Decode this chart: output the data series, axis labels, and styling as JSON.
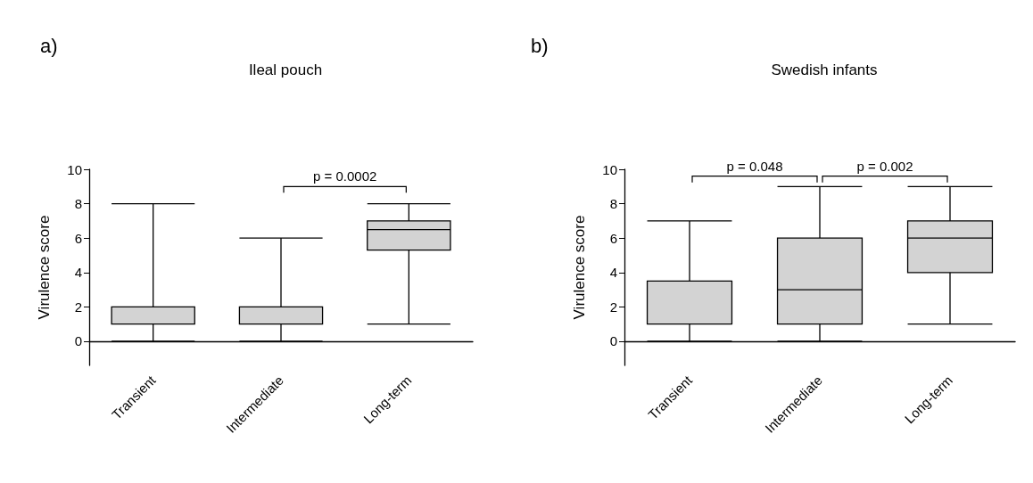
{
  "chart_data": [
    {
      "type": "box",
      "title": "Ileal pouch",
      "ylabel": "Virulence score",
      "categories": [
        "Transient",
        "Intermediate",
        "Long-term"
      ],
      "ylim": [
        -1.4,
        10
      ],
      "yticks": [
        0,
        2,
        4,
        6,
        8,
        10
      ],
      "series": [
        {
          "color": "#d3d3d3",
          "boxes": [
            {
              "low": 0,
              "q1": 1,
              "median": 1,
              "q3": 2,
              "high": 8
            },
            {
              "low": 0,
              "q1": 1,
              "median": 1,
              "q3": 2,
              "high": 6
            },
            {
              "low": 1,
              "q1": 5.3,
              "median": 6.5,
              "q3": 7,
              "high": 8
            }
          ]
        }
      ],
      "annotations": [
        "a)",
        "p = 0.0002"
      ]
    },
    {
      "type": "box",
      "title": "Swedish infants",
      "ylabel": "Virulence score",
      "categories": [
        "Transient",
        "Intermediate",
        "Long-term"
      ],
      "ylim": [
        -1.4,
        10
      ],
      "yticks": [
        0,
        2,
        4,
        6,
        8,
        10
      ],
      "series": [
        {
          "color": "#d3d3d3",
          "boxes": [
            {
              "low": 0,
              "q1": 1,
              "median": 1,
              "q3": 3.5,
              "high": 7
            },
            {
              "low": 0,
              "q1": 1,
              "median": 3,
              "q3": 6,
              "high": 9
            },
            {
              "low": 1,
              "q1": 4,
              "median": 6,
              "q3": 7,
              "high": 9
            }
          ]
        }
      ],
      "annotations": [
        "b)",
        "p = 0.048",
        "p = 0.002"
      ]
    }
  ]
}
